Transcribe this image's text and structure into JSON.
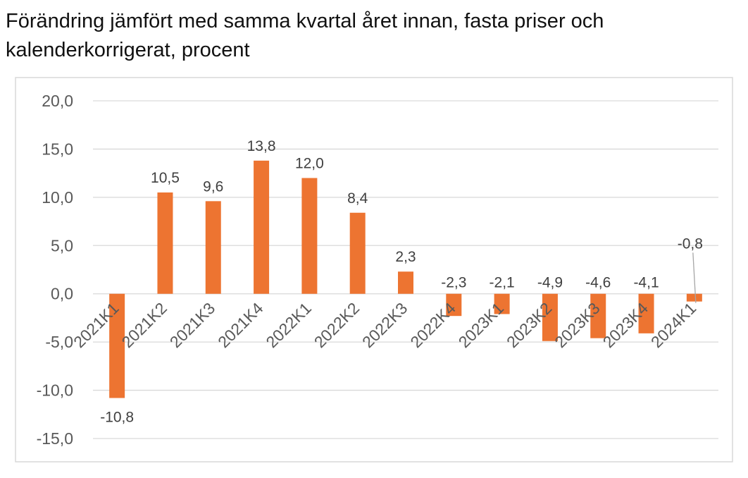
{
  "chart_data": {
    "type": "bar",
    "title": "Förändring jämfört med samma kvartal året innan, fasta priser och kalenderkorrigerat, procent",
    "xlabel": "",
    "ylabel": "",
    "categories": [
      "2021K1",
      "2021K2",
      "2021K3",
      "2021K4",
      "2022K1",
      "2022K2",
      "2022K3",
      "2022K4",
      "2023K1",
      "2023K2",
      "2023K3",
      "2023K4",
      "2024K1"
    ],
    "values": [
      -10.8,
      10.5,
      9.6,
      13.8,
      12.0,
      8.4,
      2.3,
      -2.3,
      -2.1,
      -4.9,
      -4.6,
      -4.1,
      -0.8
    ],
    "value_labels": [
      "-10,8",
      "10,5",
      "9,6",
      "13,8",
      "12,0",
      "8,4",
      "2,3",
      "-2,3",
      "-2,1",
      "-4,9",
      "-4,6",
      "-4,1",
      "-0,8"
    ],
    "ylim": [
      -15,
      20
    ],
    "yticks": [
      20,
      15,
      10,
      5,
      0,
      -5,
      -10,
      -15
    ],
    "ytick_labels": [
      "20,0",
      "15,0",
      "10,0",
      "5,0",
      "0,0",
      "-5,0",
      "-10,0",
      "-15,0"
    ],
    "grid": true,
    "legend": "none",
    "bar_color": "#ED7431",
    "grid_color": "#D9D9D9",
    "border_color": "#D9D9D9"
  }
}
